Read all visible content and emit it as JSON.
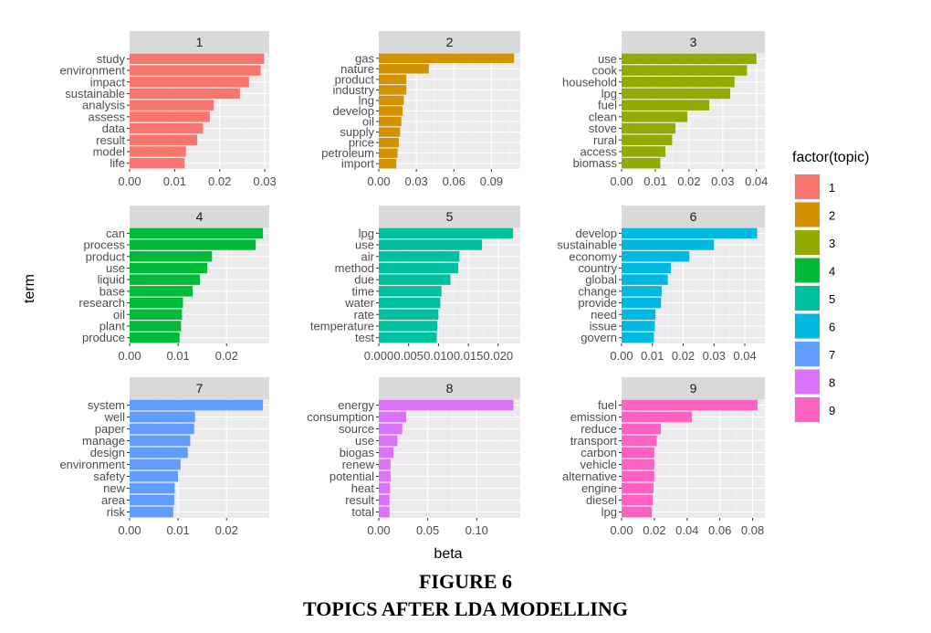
{
  "chart_data": {
    "type": "bar",
    "orientation": "horizontal",
    "xlabel": "beta",
    "ylabel": "term",
    "grid": true,
    "legend": {
      "title": "factor(topic)",
      "placement": "right",
      "items": [
        {
          "label": "1",
          "color": "#F8766D"
        },
        {
          "label": "2",
          "color": "#D39200"
        },
        {
          "label": "3",
          "color": "#93AA00"
        },
        {
          "label": "4",
          "color": "#00BA38"
        },
        {
          "label": "5",
          "color": "#00C19F"
        },
        {
          "label": "6",
          "color": "#00B9E3"
        },
        {
          "label": "7",
          "color": "#619CFF"
        },
        {
          "label": "8",
          "color": "#DB72FB"
        },
        {
          "label": "9",
          "color": "#FF61C3"
        }
      ]
    },
    "panels": [
      {
        "strip": "1",
        "color": "#F8766D",
        "xlim": [
          0,
          0.031
        ],
        "ticks": [
          0,
          0.01,
          0.02,
          0.03
        ],
        "tick_labels": [
          "0.00",
          "0.01",
          "0.02",
          "0.03"
        ],
        "terms": [
          "study",
          "environment",
          "impact",
          "sustainable",
          "analysis",
          "assess",
          "data",
          "result",
          "model",
          "life"
        ],
        "values": [
          0.0299,
          0.0291,
          0.0265,
          0.0245,
          0.0187,
          0.0178,
          0.0163,
          0.015,
          0.0125,
          0.0122
        ]
      },
      {
        "strip": "2",
        "color": "#D39200",
        "xlim": [
          0,
          0.113
        ],
        "ticks": [
          0,
          0.03,
          0.06,
          0.09
        ],
        "tick_labels": [
          "0.00",
          "0.03",
          "0.06",
          "0.09"
        ],
        "terms": [
          "gas",
          "nature",
          "product",
          "industry",
          "lng",
          "develop",
          "oil",
          "supply",
          "price",
          "petroleum",
          "import"
        ],
        "values": [
          0.108,
          0.04,
          0.022,
          0.022,
          0.02,
          0.019,
          0.018,
          0.017,
          0.016,
          0.015,
          0.014
        ]
      },
      {
        "strip": "3",
        "color": "#93AA00",
        "xlim": [
          0,
          0.0425
        ],
        "ticks": [
          0,
          0.01,
          0.02,
          0.03,
          0.04
        ],
        "tick_labels": [
          "0.00",
          "0.01",
          "0.02",
          "0.03",
          "0.04"
        ],
        "terms": [
          "use",
          "cook",
          "household",
          "lpg",
          "fuel",
          "clean",
          "stove",
          "rural",
          "access",
          "biomass"
        ],
        "values": [
          0.04,
          0.0372,
          0.0335,
          0.0322,
          0.026,
          0.0195,
          0.016,
          0.015,
          0.013,
          0.0115
        ]
      },
      {
        "strip": "4",
        "color": "#00BA38",
        "xlim": [
          0,
          0.0288
        ],
        "ticks": [
          0,
          0.01,
          0.02
        ],
        "tick_labels": [
          "0.00",
          "0.01",
          "0.02"
        ],
        "terms": [
          "can",
          "process",
          "product",
          "use",
          "liquid",
          "base",
          "research",
          "oil",
          "plant",
          "produce"
        ],
        "values": [
          0.0275,
          0.026,
          0.017,
          0.016,
          0.0145,
          0.013,
          0.011,
          0.0108,
          0.0106,
          0.0103
        ]
      },
      {
        "strip": "5",
        "color": "#00C19F",
        "xlim": [
          0,
          0.0237
        ],
        "ticks": [
          0,
          0.005,
          0.01,
          0.015,
          0.02
        ],
        "tick_labels": [
          "0.000",
          "0.005",
          "0.010",
          "0.015",
          "0.020"
        ],
        "terms": [
          "lpg",
          "use",
          "air",
          "method",
          "due",
          "time",
          "water",
          "rate",
          "temperature",
          "test"
        ],
        "values": [
          0.0225,
          0.0173,
          0.0135,
          0.0133,
          0.012,
          0.0105,
          0.0103,
          0.01,
          0.0098,
          0.0097
        ]
      },
      {
        "strip": "6",
        "color": "#00B9E3",
        "xlim": [
          0,
          0.0465
        ],
        "ticks": [
          0,
          0.01,
          0.02,
          0.03,
          0.04
        ],
        "tick_labels": [
          "0.00",
          "0.01",
          "0.02",
          "0.03",
          "0.04"
        ],
        "terms": [
          "develop",
          "sustainable",
          "economy",
          "country",
          "global",
          "change",
          "provide",
          "need",
          "issue",
          "govern"
        ],
        "values": [
          0.044,
          0.03,
          0.022,
          0.016,
          0.015,
          0.013,
          0.0128,
          0.011,
          0.0108,
          0.0105
        ]
      },
      {
        "strip": "7",
        "color": "#619CFF",
        "xlim": [
          0,
          0.0288
        ],
        "ticks": [
          0,
          0.01,
          0.02
        ],
        "tick_labels": [
          "0.00",
          "0.01",
          "0.02"
        ],
        "terms": [
          "system",
          "well",
          "paper",
          "manage",
          "design",
          "environment",
          "safety",
          "new",
          "area",
          "risk"
        ],
        "values": [
          0.0275,
          0.0135,
          0.0133,
          0.0125,
          0.012,
          0.0105,
          0.01,
          0.0093,
          0.0092,
          0.009
        ]
      },
      {
        "strip": "8",
        "color": "#DB72FB",
        "xlim": [
          0,
          0.1445
        ],
        "ticks": [
          0,
          0.05,
          0.1
        ],
        "tick_labels": [
          "0.00",
          "0.05",
          "0.10"
        ],
        "terms": [
          "energy",
          "consumption",
          "source",
          "use",
          "biogas",
          "renew",
          "potential",
          "heat",
          "result",
          "total"
        ],
        "values": [
          0.1375,
          0.028,
          0.024,
          0.019,
          0.015,
          0.012,
          0.012,
          0.0115,
          0.011,
          0.011
        ]
      },
      {
        "strip": "9",
        "color": "#FF61C3",
        "xlim": [
          0,
          0.0875
        ],
        "ticks": [
          0,
          0.02,
          0.04,
          0.06,
          0.08
        ],
        "tick_labels": [
          "0.00",
          "0.02",
          "0.04",
          "0.06",
          "0.08"
        ],
        "terms": [
          "fuel",
          "emission",
          "reduce",
          "transport",
          "carbon",
          "vehicle",
          "alternative",
          "engine",
          "diesel",
          "lpg"
        ],
        "values": [
          0.083,
          0.043,
          0.024,
          0.0215,
          0.02,
          0.02,
          0.02,
          0.0195,
          0.019,
          0.0185
        ]
      }
    ]
  },
  "caption": {
    "figure": "FIGURE 6",
    "title": "TOPICS AFTER LDA MODELLING"
  }
}
